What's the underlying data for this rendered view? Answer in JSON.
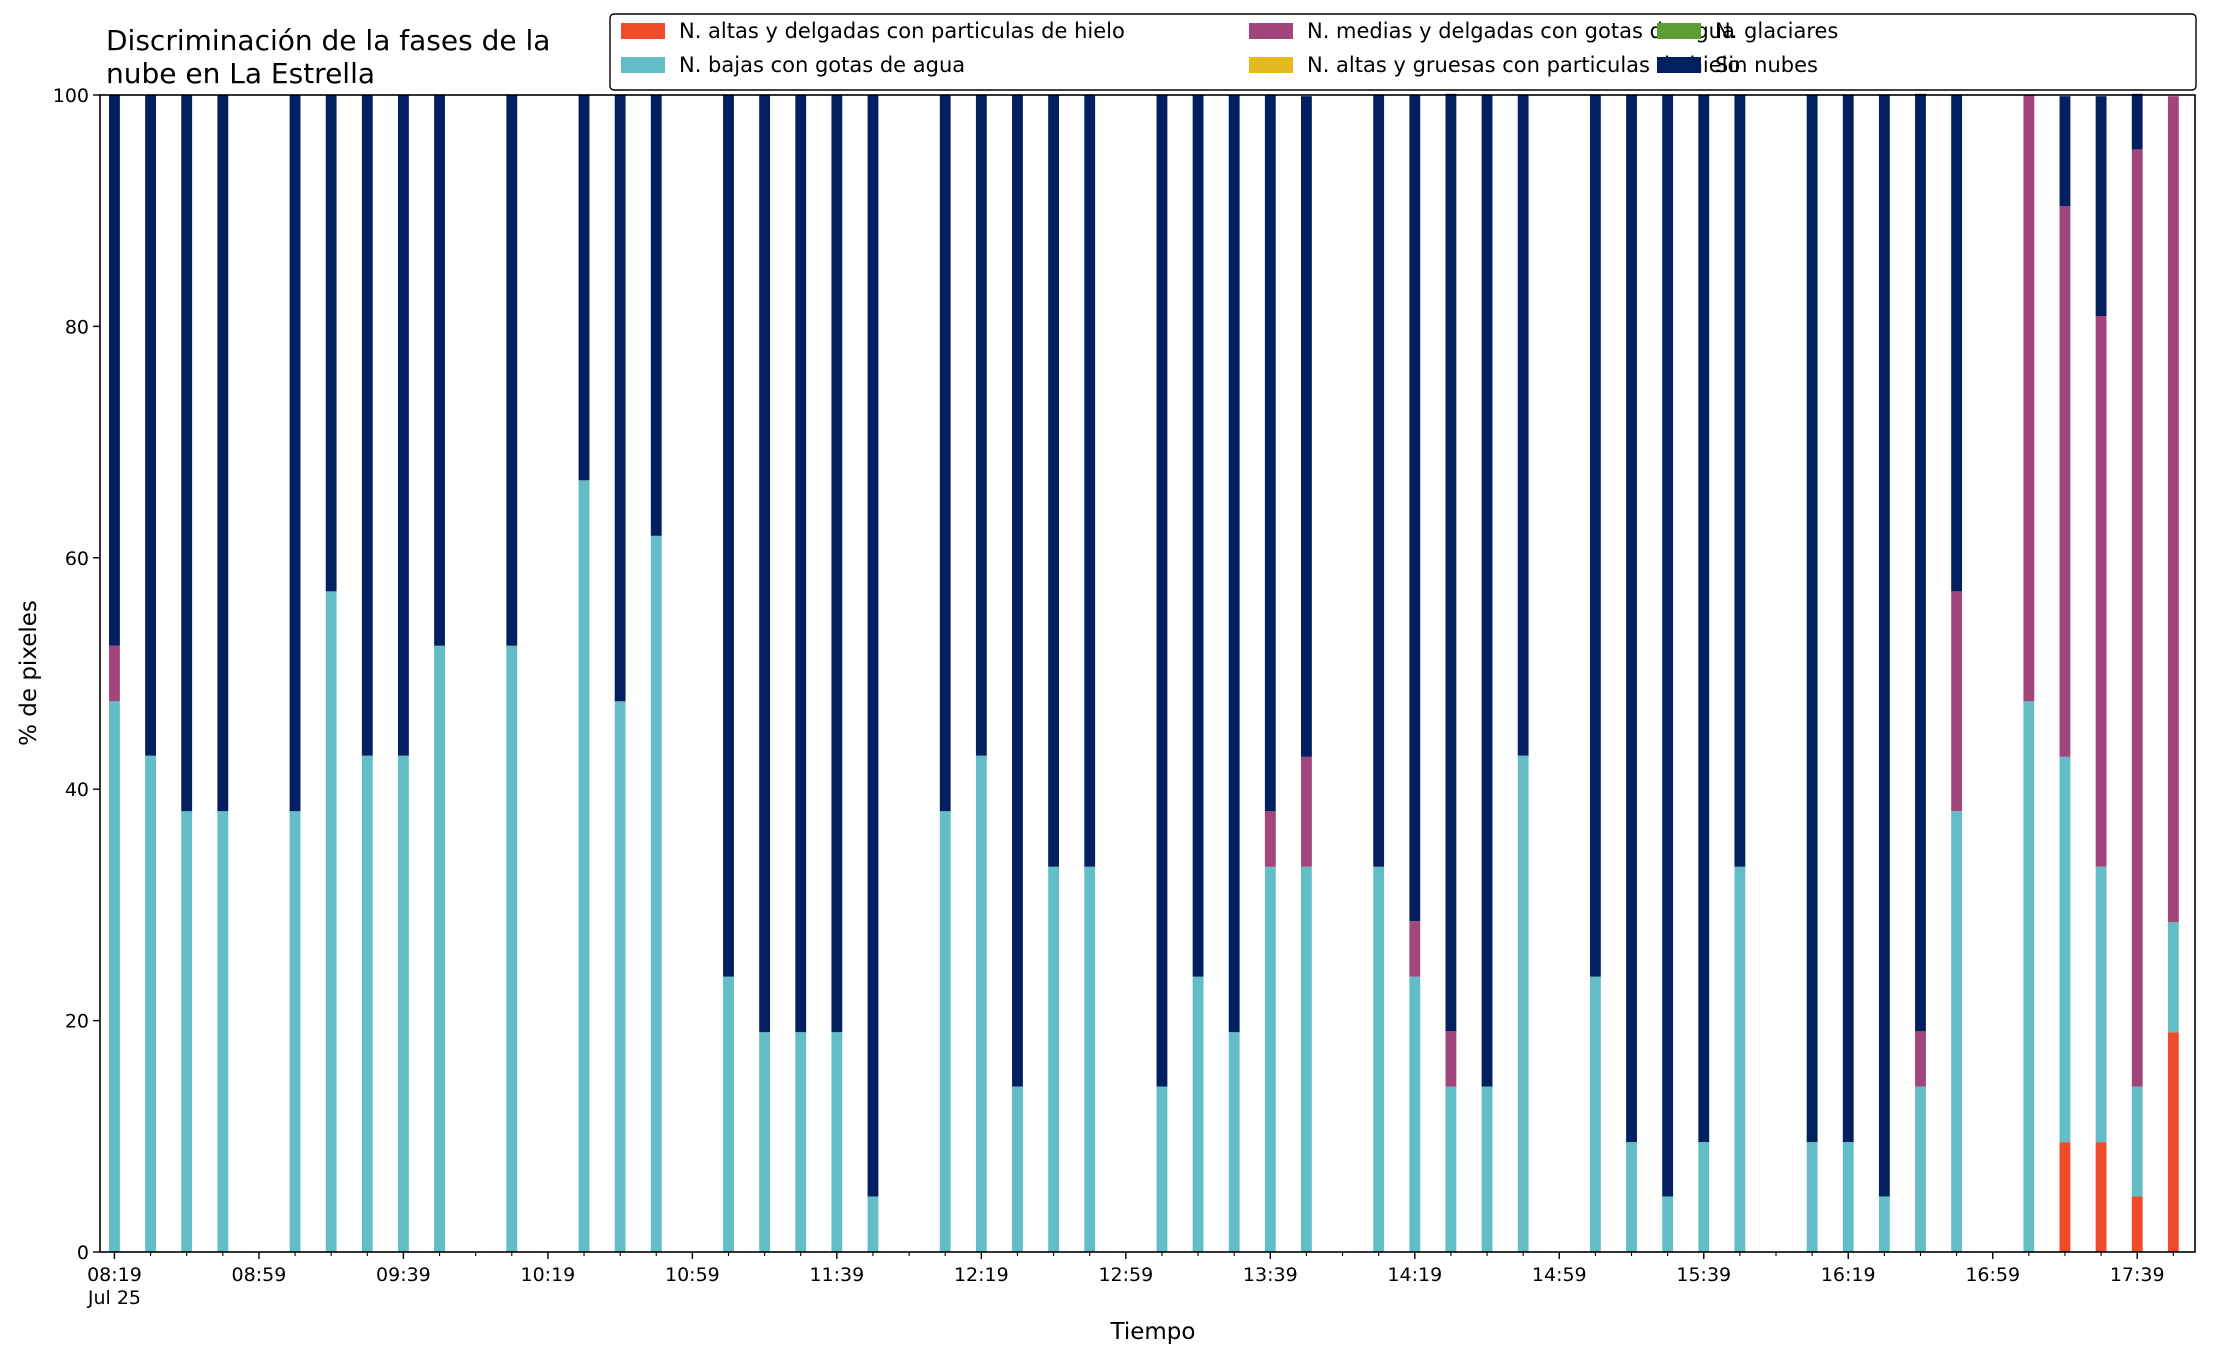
{
  "chart_data": {
    "type": "bar",
    "stacked": true,
    "title": "Discriminación de la fases de la nube en La Estrella",
    "title_lines": [
      "Discriminación de la fases de la",
      "nube en La Estrella"
    ],
    "xlabel": "Tiempo",
    "ylabel": "% de pixeles",
    "ylim": [
      0,
      100
    ],
    "yticks": [
      0,
      20,
      40,
      60,
      80,
      100
    ],
    "xlim": [
      "08:15",
      "17:55"
    ],
    "x_tick_step_minutes": 10,
    "x_tick_labels": [
      {
        "time": "08:19",
        "label": "08:19",
        "sublabel": "Jul 25"
      },
      {
        "time": "08:59",
        "label": "08:59"
      },
      {
        "time": "09:39",
        "label": "09:39"
      },
      {
        "time": "10:19",
        "label": "10:19"
      },
      {
        "time": "10:59",
        "label": "10:59"
      },
      {
        "time": "11:39",
        "label": "11:39"
      },
      {
        "time": "12:19",
        "label": "12:19"
      },
      {
        "time": "12:59",
        "label": "12:59"
      },
      {
        "time": "13:39",
        "label": "13:39"
      },
      {
        "time": "14:19",
        "label": "14:19"
      },
      {
        "time": "14:59",
        "label": "14:59"
      },
      {
        "time": "15:39",
        "label": "15:39"
      },
      {
        "time": "16:19",
        "label": "16:19"
      },
      {
        "time": "16:59",
        "label": "16:59"
      },
      {
        "time": "17:39",
        "label": "17:39"
      }
    ],
    "bar_width_minutes": 3,
    "legend_position": "top-right",
    "series": [
      {
        "name": "N. altas y delgadas con particulas de hielo",
        "color": "#ee4b2b"
      },
      {
        "name": "N. altas y gruesas con particulas de hielo",
        "color": "#e6b91e"
      },
      {
        "name": "N. bajas con gotas de agua",
        "color": "#63bdc9"
      },
      {
        "name": "N. glaciares",
        "color": "#5c9e31"
      },
      {
        "name": "N. medias y delgadas con gotas de agua",
        "color": "#a2457a"
      },
      {
        "name": "Sin nubes",
        "color": "#02205f"
      }
    ],
    "legend_order": [
      0,
      2,
      4,
      1,
      3,
      5
    ],
    "bars": [
      {
        "time": "08:19",
        "values": [
          0,
          0,
          47.6,
          0,
          4.8,
          47.6
        ]
      },
      {
        "time": "08:29",
        "values": [
          0,
          0,
          42.9,
          0,
          0,
          57.1
        ]
      },
      {
        "time": "08:39",
        "values": [
          0,
          0,
          38.1,
          0,
          0,
          61.9
        ]
      },
      {
        "time": "08:49",
        "values": [
          0,
          0,
          38.1,
          0,
          0,
          61.9
        ]
      },
      {
        "time": "09:09",
        "values": [
          0,
          0,
          38.1,
          0,
          0,
          61.9
        ]
      },
      {
        "time": "09:19",
        "values": [
          0,
          0,
          57.1,
          0,
          0,
          42.9
        ]
      },
      {
        "time": "09:29",
        "values": [
          0,
          0,
          42.9,
          0,
          0,
          57.1
        ]
      },
      {
        "time": "09:39",
        "values": [
          0,
          0,
          42.9,
          0,
          0,
          57.1
        ]
      },
      {
        "time": "09:49",
        "values": [
          0,
          0,
          52.4,
          0,
          0,
          47.6
        ]
      },
      {
        "time": "10:09",
        "values": [
          0,
          0,
          52.4,
          0,
          0,
          47.6
        ]
      },
      {
        "time": "10:29",
        "values": [
          0,
          0,
          66.7,
          0,
          0,
          33.3
        ]
      },
      {
        "time": "10:39",
        "values": [
          0,
          0,
          47.6,
          0,
          0,
          52.4
        ]
      },
      {
        "time": "10:49",
        "values": [
          0,
          0,
          61.9,
          0,
          0,
          38.1
        ]
      },
      {
        "time": "11:09",
        "values": [
          0,
          0,
          23.8,
          0,
          0,
          76.2
        ]
      },
      {
        "time": "11:19",
        "values": [
          0,
          0,
          19.0,
          0,
          0,
          81.0
        ]
      },
      {
        "time": "11:29",
        "values": [
          0,
          0,
          19.0,
          0,
          0,
          81.0
        ]
      },
      {
        "time": "11:39",
        "values": [
          0,
          0,
          19.0,
          0,
          0,
          81.0
        ]
      },
      {
        "time": "11:49",
        "values": [
          0,
          0,
          4.8,
          0,
          0,
          95.2
        ]
      },
      {
        "time": "12:09",
        "values": [
          0,
          0,
          38.1,
          0,
          0,
          61.9
        ]
      },
      {
        "time": "12:19",
        "values": [
          0,
          0,
          42.9,
          0,
          0,
          57.1
        ]
      },
      {
        "time": "12:29",
        "values": [
          0,
          0,
          14.3,
          0,
          0,
          85.7
        ]
      },
      {
        "time": "12:39",
        "values": [
          0,
          0,
          33.3,
          0,
          0,
          66.7
        ]
      },
      {
        "time": "12:49",
        "values": [
          0,
          0,
          33.3,
          0,
          0,
          66.7
        ]
      },
      {
        "time": "13:09",
        "values": [
          0,
          0,
          14.3,
          0,
          0,
          85.7
        ]
      },
      {
        "time": "13:19",
        "values": [
          0,
          0,
          23.8,
          0,
          0,
          76.2
        ]
      },
      {
        "time": "13:29",
        "values": [
          0,
          0,
          19.0,
          0,
          0,
          81.0
        ]
      },
      {
        "time": "13:39",
        "values": [
          0,
          0,
          33.3,
          0,
          4.8,
          61.9
        ]
      },
      {
        "time": "13:49",
        "values": [
          0,
          0,
          33.3,
          0,
          9.5,
          57.1
        ]
      },
      {
        "time": "14:09",
        "values": [
          0,
          0,
          33.3,
          0,
          0,
          66.7
        ]
      },
      {
        "time": "14:19",
        "values": [
          0,
          0,
          23.8,
          0,
          4.8,
          71.4
        ]
      },
      {
        "time": "14:29",
        "values": [
          0,
          0,
          14.3,
          0,
          4.8,
          81.0
        ]
      },
      {
        "time": "14:39",
        "values": [
          0,
          0,
          14.3,
          0,
          0,
          85.7
        ]
      },
      {
        "time": "14:49",
        "values": [
          0,
          0,
          42.9,
          0,
          0,
          57.1
        ]
      },
      {
        "time": "15:09",
        "values": [
          0,
          0,
          23.8,
          0,
          0,
          76.2
        ]
      },
      {
        "time": "15:19",
        "values": [
          0,
          0,
          9.5,
          0,
          0,
          90.5
        ]
      },
      {
        "time": "15:29",
        "values": [
          0,
          0,
          4.8,
          0,
          0,
          95.2
        ]
      },
      {
        "time": "15:39",
        "values": [
          0,
          0,
          9.5,
          0,
          0,
          90.5
        ]
      },
      {
        "time": "15:49",
        "values": [
          0,
          0,
          33.3,
          0,
          0,
          66.7
        ]
      },
      {
        "time": "16:09",
        "values": [
          0,
          0,
          9.5,
          0,
          0,
          90.5
        ]
      },
      {
        "time": "16:19",
        "values": [
          0,
          0,
          9.5,
          0,
          0,
          90.5
        ]
      },
      {
        "time": "16:29",
        "values": [
          0,
          0,
          4.8,
          0,
          0,
          95.2
        ]
      },
      {
        "time": "16:39",
        "values": [
          0,
          0,
          14.3,
          0,
          4.8,
          81.0
        ]
      },
      {
        "time": "16:49",
        "values": [
          0,
          0,
          38.1,
          0,
          19.0,
          42.9
        ]
      },
      {
        "time": "17:09",
        "values": [
          0,
          0,
          47.6,
          0,
          52.4,
          0
        ]
      },
      {
        "time": "17:19",
        "values": [
          9.5,
          0,
          33.3,
          0,
          47.6,
          9.5
        ]
      },
      {
        "time": "17:29",
        "values": [
          9.5,
          0,
          23.8,
          0,
          47.6,
          19.0
        ]
      },
      {
        "time": "17:39",
        "values": [
          4.8,
          0,
          9.5,
          0,
          81.0,
          4.8
        ]
      },
      {
        "time": "17:49",
        "values": [
          19.0,
          0,
          9.5,
          0,
          71.4,
          0
        ]
      }
    ]
  }
}
